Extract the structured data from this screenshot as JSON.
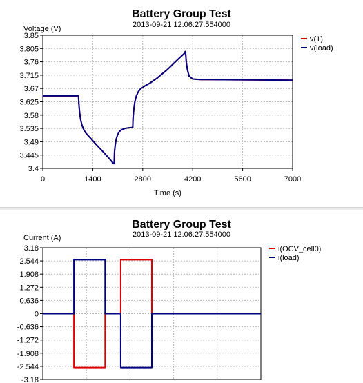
{
  "chart_data": [
    {
      "type": "line",
      "title": "Battery Group Test",
      "subtitle": "2013-09-21 12:06:27.554000",
      "ylabel": "Voltage (V)",
      "xlabel": "Time (s)",
      "xlim": [
        0,
        7000
      ],
      "ylim": [
        3.4,
        3.85
      ],
      "xticks": [
        0,
        1400,
        2800,
        4200,
        5600,
        7000
      ],
      "yticks": [
        3.4,
        3.445,
        3.49,
        3.535,
        3.58,
        3.625,
        3.67,
        3.715,
        3.76,
        3.805,
        3.85
      ],
      "ytick_labels": [
        "3.4",
        "3.445",
        "3.49",
        "3.535",
        "3.58",
        "3.625",
        "3.67",
        "3.715",
        "3.76",
        "3.805",
        "3.85"
      ],
      "grid": true,
      "legend_position": "top-right",
      "series": [
        {
          "name": "v(1)",
          "color": "#dd0000",
          "x": [
            0,
            980,
            1000,
            1010,
            1030,
            1060,
            1100,
            1150,
            1200,
            1300,
            1500,
            1700,
            1900,
            1980,
            2000,
            2010,
            2030,
            2060,
            2100,
            2150,
            2200,
            2300,
            2400,
            2500,
            2520,
            2530,
            2550,
            2580,
            2620,
            2680,
            2750,
            2850,
            3000,
            3200,
            3500,
            3800,
            3960,
            3980,
            3990,
            4000,
            4020,
            4050,
            4100,
            4200,
            4400,
            7000
          ],
          "y": [
            3.645,
            3.645,
            3.645,
            3.62,
            3.59,
            3.565,
            3.545,
            3.53,
            3.52,
            3.507,
            3.48,
            3.455,
            3.428,
            3.416,
            3.416,
            3.455,
            3.48,
            3.5,
            3.515,
            3.525,
            3.53,
            3.535,
            3.537,
            3.538,
            3.538,
            3.57,
            3.6,
            3.625,
            3.645,
            3.66,
            3.67,
            3.678,
            3.688,
            3.705,
            3.735,
            3.77,
            3.788,
            3.79,
            3.795,
            3.792,
            3.76,
            3.735,
            3.712,
            3.702,
            3.7,
            3.698
          ]
        },
        {
          "name": "v(load)",
          "color": "#000080",
          "x": [
            0,
            980,
            1000,
            1010,
            1030,
            1060,
            1100,
            1150,
            1200,
            1300,
            1500,
            1700,
            1900,
            1980,
            2000,
            2010,
            2030,
            2060,
            2100,
            2150,
            2200,
            2300,
            2400,
            2500,
            2520,
            2530,
            2550,
            2580,
            2620,
            2680,
            2750,
            2850,
            3000,
            3200,
            3500,
            3800,
            3960,
            3980,
            3990,
            4000,
            4020,
            4050,
            4100,
            4200,
            4400,
            7000
          ],
          "y": [
            3.645,
            3.645,
            3.645,
            3.62,
            3.59,
            3.565,
            3.545,
            3.53,
            3.52,
            3.507,
            3.48,
            3.455,
            3.428,
            3.416,
            3.416,
            3.455,
            3.48,
            3.5,
            3.515,
            3.525,
            3.53,
            3.535,
            3.537,
            3.538,
            3.538,
            3.57,
            3.6,
            3.625,
            3.645,
            3.66,
            3.67,
            3.678,
            3.688,
            3.705,
            3.735,
            3.77,
            3.788,
            3.79,
            3.795,
            3.792,
            3.76,
            3.735,
            3.712,
            3.702,
            3.7,
            3.698
          ]
        }
      ]
    },
    {
      "type": "line",
      "title": "Battery Group Test",
      "subtitle": "2013-09-21 12:06:27.554000",
      "ylabel": "Current (A)",
      "xlabel": "",
      "xlim": [
        0,
        7000
      ],
      "ylim": [
        -3.18,
        3.18
      ],
      "xticks": [
        0,
        1400,
        2800,
        4200,
        5600,
        7000
      ],
      "yticks": [
        3.18,
        2.544,
        1.908,
        1.272,
        0.636,
        0,
        -0.636,
        -1.272,
        -1.908,
        -2.544,
        -3.18
      ],
      "ytick_labels": [
        "3.18",
        "2.544",
        "1.908",
        "1.272",
        "0.636",
        "0",
        "-0.636",
        "-1.272",
        "-1.908",
        "-2.544",
        "-3.18"
      ],
      "grid": true,
      "legend_position": "top-right",
      "series": [
        {
          "name": "i(OCV_cell0)",
          "color": "#dd0000",
          "x": [
            0,
            1000,
            1000,
            2000,
            2000,
            2500,
            2500,
            3500,
            3500,
            7000
          ],
          "y": [
            0,
            0,
            -2.6,
            -2.6,
            0,
            0,
            2.6,
            2.6,
            0,
            0
          ]
        },
        {
          "name": "i(load)",
          "color": "#000080",
          "x": [
            0,
            1000,
            1000,
            2000,
            2000,
            2500,
            2500,
            3500,
            3500,
            7000
          ],
          "y": [
            0,
            0,
            2.6,
            2.6,
            0,
            0,
            -2.6,
            -2.6,
            0,
            0
          ]
        }
      ]
    }
  ]
}
